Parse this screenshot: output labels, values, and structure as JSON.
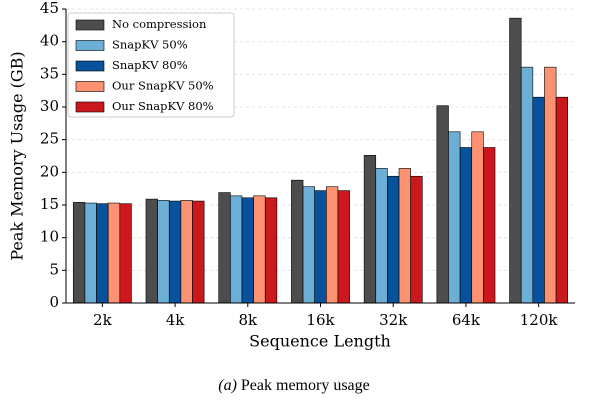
{
  "chart_data": {
    "type": "bar",
    "ylabel": "Peak Memory Usage (GB)",
    "xlabel": "Sequence Length",
    "categories": [
      "2k",
      "4k",
      "8k",
      "16k",
      "32k",
      "64k",
      "120k"
    ],
    "series": [
      {
        "name": "No compression",
        "color": "#4d4d4d",
        "values": [
          15.4,
          15.9,
          16.9,
          18.8,
          22.6,
          30.2,
          43.6
        ]
      },
      {
        "name": "SnapKV 50%",
        "color": "#6baed6",
        "values": [
          15.3,
          15.7,
          16.4,
          17.8,
          20.6,
          26.2,
          36.1
        ]
      },
      {
        "name": "SnapKV 80%",
        "color": "#08519c",
        "values": [
          15.2,
          15.6,
          16.1,
          17.2,
          19.4,
          23.8,
          31.5
        ]
      },
      {
        "name": "Our SnapKV 50%",
        "color": "#fc9272",
        "values": [
          15.3,
          15.7,
          16.4,
          17.8,
          20.6,
          26.2,
          36.1
        ]
      },
      {
        "name": "Our SnapKV 80%",
        "color": "#cb181d",
        "values": [
          15.2,
          15.6,
          16.1,
          17.2,
          19.4,
          23.8,
          31.5
        ]
      }
    ],
    "ylim": [
      0,
      45
    ],
    "yticks": [
      0,
      5,
      10,
      15,
      20,
      25,
      30,
      35,
      40,
      45
    ],
    "grid": true,
    "legend": "upper left"
  },
  "caption": {
    "label": "(a)",
    "text": "Peak memory usage"
  }
}
